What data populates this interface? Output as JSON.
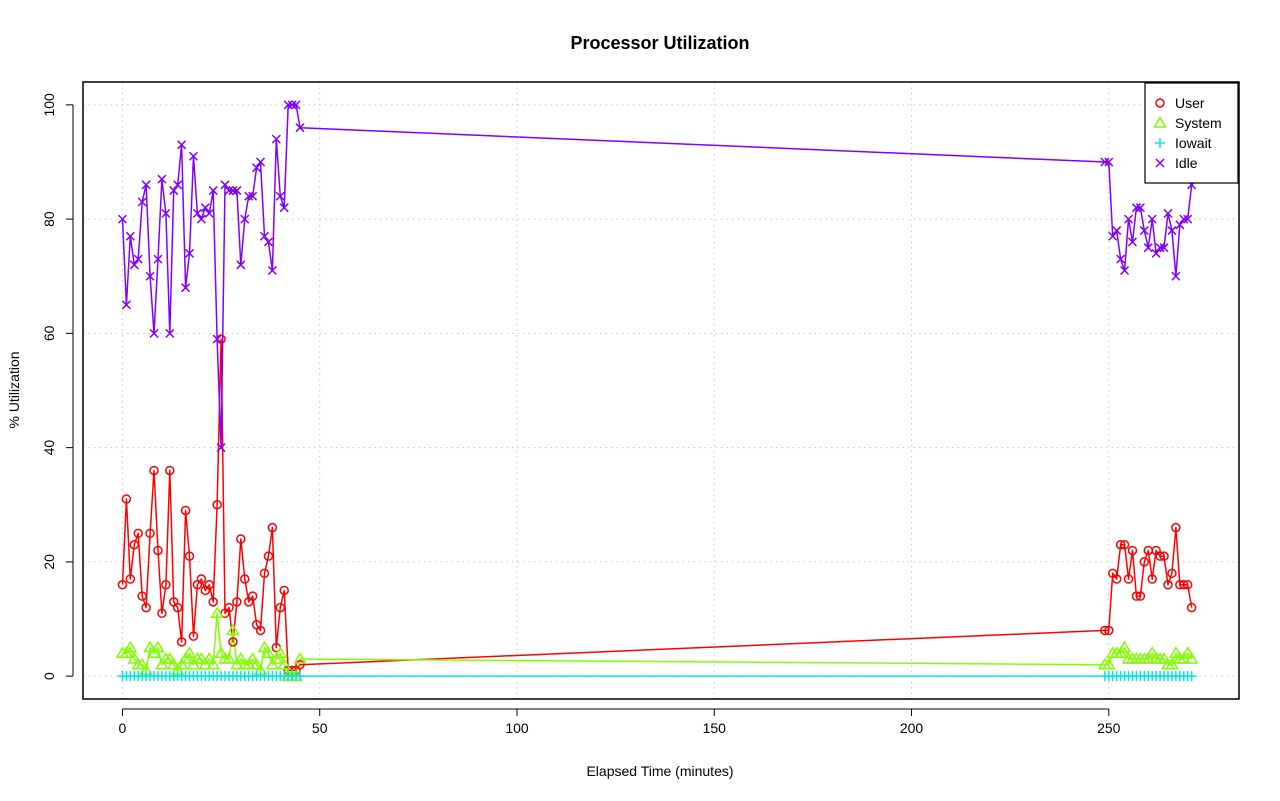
{
  "chart_data": {
    "type": "line",
    "title": "Processor Utilization",
    "xlabel": "Elapsed Time (minutes)",
    "ylabel": "% Utilization",
    "xlim": [
      -10,
      283
    ],
    "ylim": [
      -4,
      104
    ],
    "xticks": [
      0,
      50,
      100,
      150,
      200,
      250
    ],
    "yticks": [
      0,
      20,
      40,
      60,
      80,
      100
    ],
    "grid": true,
    "legend_position": "top-right",
    "x": [
      0,
      1,
      2,
      3,
      4,
      5,
      6,
      7,
      8,
      9,
      10,
      11,
      12,
      13,
      14,
      15,
      16,
      17,
      18,
      19,
      20,
      21,
      22,
      23,
      24,
      25,
      26,
      27,
      28,
      29,
      30,
      31,
      32,
      33,
      34,
      35,
      36,
      37,
      38,
      39,
      40,
      41,
      42,
      43,
      44,
      45,
      249,
      250,
      251,
      252,
      253,
      254,
      255,
      256,
      257,
      258,
      259,
      260,
      261,
      262,
      263,
      264,
      265,
      266,
      267,
      268,
      269,
      270,
      271
    ],
    "series": [
      {
        "name": "User",
        "color": "#ff0000",
        "marker": "circle",
        "values": [
          16,
          31,
          17,
          23,
          25,
          14,
          12,
          25,
          36,
          22,
          11,
          16,
          36,
          13,
          12,
          6,
          29,
          21,
          7,
          16,
          17,
          15,
          16,
          13,
          30,
          59,
          11,
          12,
          6,
          13,
          24,
          17,
          13,
          14,
          9,
          8,
          18,
          21,
          26,
          5,
          12,
          15,
          1,
          1,
          1,
          2,
          8,
          8,
          18,
          17,
          23,
          23,
          17,
          22,
          14,
          14,
          20,
          22,
          17,
          22,
          21,
          21,
          16,
          18,
          26,
          16,
          16,
          16,
          12
        ]
      },
      {
        "name": "System",
        "color": "#80ff00",
        "marker": "triangle",
        "values": [
          4,
          4,
          5,
          3,
          2,
          2,
          1,
          5,
          4,
          5,
          2,
          3,
          3,
          2,
          1,
          2,
          3,
          4,
          2,
          3,
          3,
          2,
          3,
          2,
          11,
          4,
          3,
          3,
          8,
          2,
          3,
          2,
          2,
          3,
          2,
          1,
          5,
          4,
          2,
          3,
          4,
          2,
          0,
          0,
          0,
          3,
          2,
          2,
          4,
          4,
          4,
          5,
          3,
          3,
          3,
          3,
          3,
          3,
          4,
          3,
          3,
          3,
          2,
          2,
          4,
          3,
          3,
          4,
          3
        ]
      },
      {
        "name": "Iowait",
        "color": "#00e5e5",
        "marker": "plus",
        "values": [
          0,
          0,
          0,
          0,
          0,
          0,
          0,
          0,
          0,
          0,
          0,
          0,
          0,
          0,
          0,
          0,
          0,
          0,
          0,
          0,
          0,
          0,
          0,
          0,
          0,
          0,
          0,
          0,
          0,
          0,
          0,
          0,
          0,
          0,
          0,
          0,
          0,
          0,
          0,
          0,
          0,
          0,
          0,
          0,
          0,
          0,
          0,
          0,
          0,
          0,
          0,
          0,
          0,
          0,
          0,
          0,
          0,
          0,
          0,
          0,
          0,
          0,
          0,
          0,
          0,
          0,
          0,
          0,
          0
        ]
      },
      {
        "name": "Idle",
        "color": "#8000ff",
        "marker": "x",
        "values": [
          80,
          65,
          77,
          72,
          73,
          83,
          86,
          70,
          60,
          73,
          87,
          81,
          60,
          85,
          86,
          93,
          68,
          74,
          91,
          81,
          80,
          82,
          81,
          85,
          59,
          40,
          86,
          85,
          85,
          85,
          72,
          80,
          84,
          84,
          89,
          90,
          77,
          76,
          71,
          94,
          84,
          82,
          100,
          100,
          100,
          96,
          90,
          90,
          77,
          78,
          73,
          71,
          80,
          76,
          82,
          82,
          78,
          75,
          80,
          74,
          75,
          75,
          81,
          78,
          70,
          79,
          80,
          80,
          86
        ]
      }
    ]
  }
}
